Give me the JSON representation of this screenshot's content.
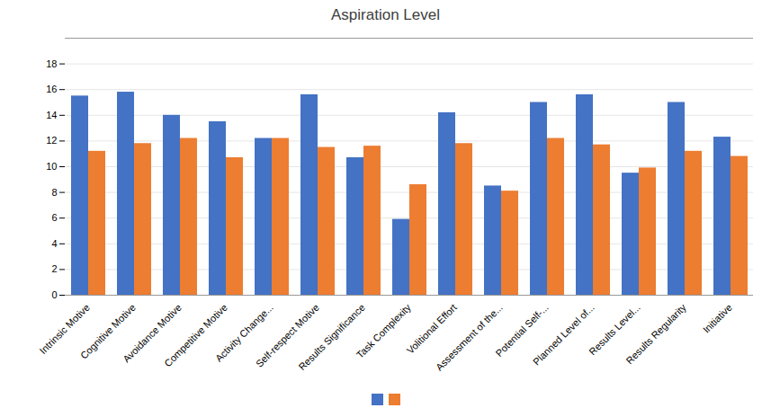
{
  "chart_data": {
    "type": "bar",
    "title": "Aspiration Level",
    "categories": [
      "Intrinsic Motive",
      "Cognitive Motive",
      "Avoidance Motive",
      "Competitive Motive",
      "Activity Change...",
      "Self-respect Motive",
      "Results Significance",
      "Task Complexity",
      "Volitional Effort",
      "Assessment of the...",
      "Potential Self-...",
      "Planned Level of...",
      "Results Level...",
      "Results Regularity",
      "Initiative"
    ],
    "series": [
      {
        "color": "#4472C4",
        "values": [
          15.5,
          15.8,
          14.0,
          13.5,
          12.2,
          15.6,
          10.7,
          5.9,
          14.2,
          8.5,
          15.0,
          15.6,
          9.5,
          15.0,
          12.3
        ]
      },
      {
        "color": "#ED7D31",
        "values": [
          11.2,
          11.8,
          12.2,
          10.7,
          12.2,
          11.5,
          11.6,
          8.6,
          11.8,
          8.1,
          12.2,
          11.7,
          9.9,
          11.2,
          10.8
        ]
      }
    ],
    "ylim": [
      0,
      20
    ],
    "yticks": [
      0,
      2,
      4,
      6,
      8,
      10,
      12,
      14,
      16,
      18
    ],
    "grid": true,
    "legend": "bottom"
  }
}
